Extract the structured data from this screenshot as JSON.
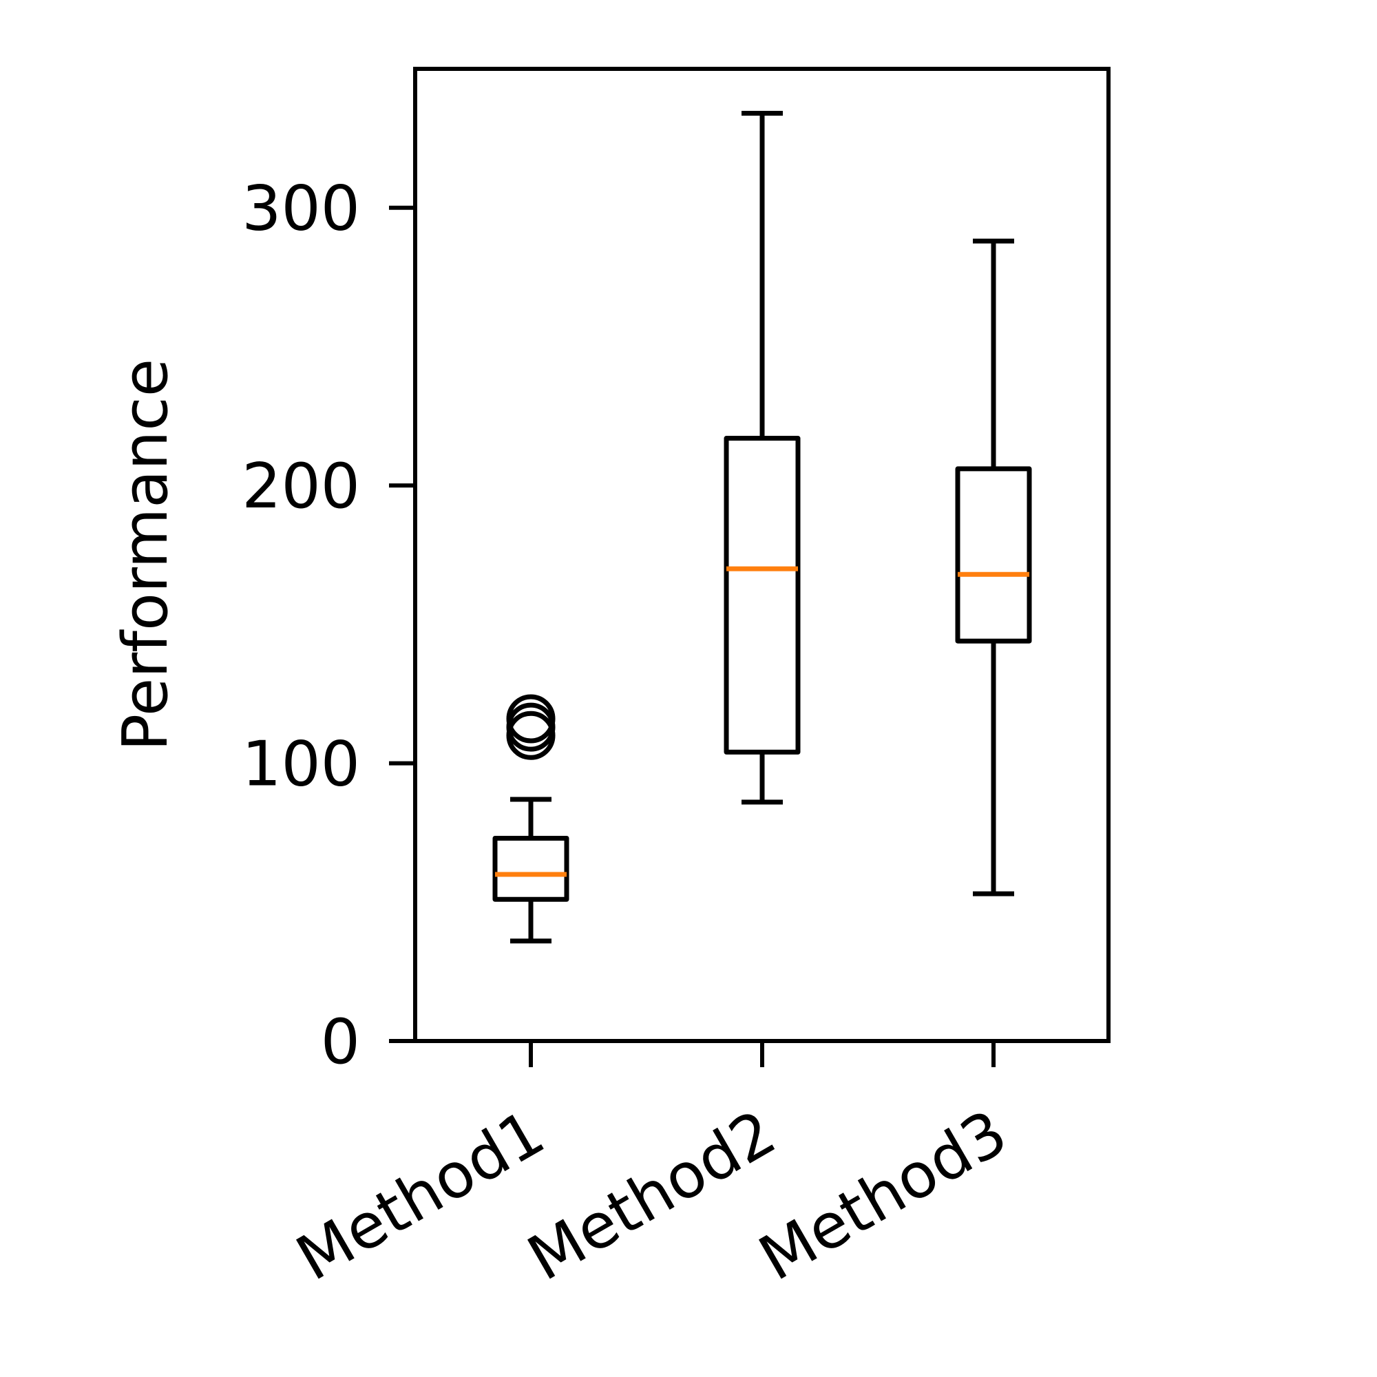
{
  "chart_data": {
    "type": "box",
    "title": "",
    "xlabel": "",
    "ylabel": "Performance",
    "ylim": [
      0,
      350
    ],
    "yticks": [
      0,
      100,
      200,
      300
    ],
    "grid": false,
    "categories": [
      "Method1",
      "Method2",
      "Method3"
    ],
    "boxes": [
      {
        "name": "Method1",
        "whisker_low": 36,
        "q1": 51,
        "median": 60,
        "q3": 73,
        "whisker_high": 87,
        "outliers": [
          110,
          113,
          116
        ]
      },
      {
        "name": "Method2",
        "whisker_low": 86,
        "q1": 104,
        "median": 170,
        "q3": 217,
        "whisker_high": 334,
        "outliers": []
      },
      {
        "name": "Method3",
        "whisker_low": 53,
        "q1": 144,
        "median": 168,
        "q3": 206,
        "whisker_high": 288,
        "outliers": []
      }
    ],
    "colors": {
      "box": "#000000",
      "median": "#ff7f0e"
    }
  }
}
